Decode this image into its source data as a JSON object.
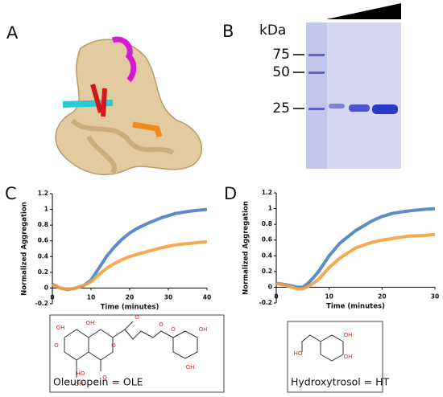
{
  "panels": {
    "a": "A",
    "b": "B",
    "c": "C",
    "d": "D"
  },
  "gel": {
    "unit": "kDa",
    "markers": [
      75,
      50,
      25
    ]
  },
  "molecules": [
    {
      "caption": "Oleuropein = OLE",
      "atoms": [
        "O",
        "OH",
        "OH",
        "OH",
        "HO",
        "O",
        "O",
        "O",
        "O",
        "O",
        "OH",
        "OH"
      ]
    },
    {
      "caption": "Hydroxytrosol = HT",
      "atoms": [
        "OH",
        "OH",
        "HO"
      ]
    }
  ],
  "chart_data": [
    {
      "type": "line",
      "xlabel": "Time (minutes)",
      "ylabel": "Normalized Aggregation",
      "x": [
        0,
        2,
        4,
        6,
        8,
        10,
        12,
        14,
        16,
        18,
        20,
        22,
        25,
        28,
        32,
        36,
        40
      ],
      "series": [
        {
          "color": "#4a7fc1",
          "values": [
            0.05,
            0.0,
            -0.02,
            0.0,
            0.03,
            0.1,
            0.25,
            0.4,
            0.52,
            0.62,
            0.7,
            0.76,
            0.83,
            0.89,
            0.95,
            0.98,
            1.0
          ]
        },
        {
          "color": "#f5a040",
          "values": [
            0.05,
            0.0,
            -0.02,
            0.0,
            0.03,
            0.08,
            0.17,
            0.25,
            0.31,
            0.36,
            0.4,
            0.43,
            0.47,
            0.51,
            0.55,
            0.57,
            0.59
          ]
        }
      ],
      "xlim": [
        0,
        40
      ],
      "xticks": [
        0,
        10,
        20,
        30,
        40
      ],
      "ylim": [
        -0.2,
        1.2
      ],
      "yticks": [
        -0.2,
        0,
        0.2,
        0.4,
        0.6,
        0.8,
        1,
        1.2
      ]
    },
    {
      "type": "line",
      "xlabel": "Time (minutes)",
      "ylabel": "Normalized Aggregation",
      "x": [
        0,
        2,
        4,
        5,
        6,
        7,
        8,
        10,
        12,
        15,
        18,
        20,
        22,
        25,
        28,
        30
      ],
      "series": [
        {
          "color": "#4a7fc1",
          "values": [
            0.05,
            0.03,
            0.0,
            0.0,
            0.05,
            0.12,
            0.2,
            0.4,
            0.56,
            0.72,
            0.84,
            0.9,
            0.94,
            0.97,
            0.99,
            1.0
          ]
        },
        {
          "color": "#f5a040",
          "values": [
            0.05,
            0.02,
            -0.02,
            -0.02,
            0.01,
            0.05,
            0.1,
            0.25,
            0.37,
            0.5,
            0.57,
            0.6,
            0.62,
            0.65,
            0.66,
            0.67
          ]
        }
      ],
      "xlim": [
        0,
        30
      ],
      "xticks": [
        0,
        10,
        20,
        30
      ],
      "ylim": [
        -0.2,
        1.2
      ],
      "yticks": [
        -0.2,
        0,
        0.2,
        0.4,
        0.6,
        0.8,
        1,
        1.2
      ]
    }
  ]
}
